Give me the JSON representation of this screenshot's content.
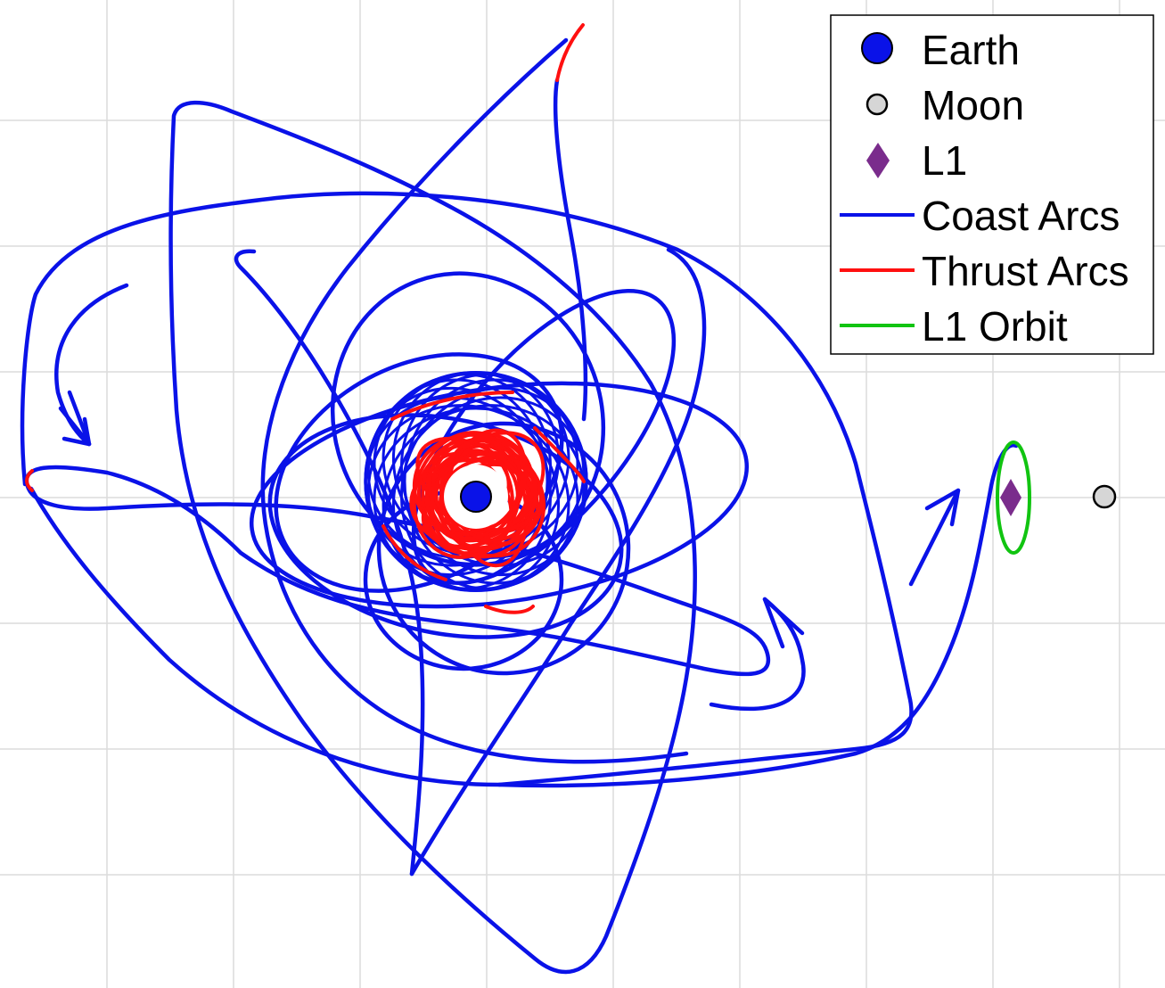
{
  "colors": {
    "coast": "#0a12e8",
    "thrust": "#ff1010",
    "l1_orbit": "#11c411",
    "earth": "#0a12e8",
    "moon": "#d6d6d6",
    "l1": "#7a2c8c",
    "grid": "#dcdcdc"
  },
  "legend": {
    "placement": "top-right",
    "earth": "Earth",
    "moon": "Moon",
    "l1": "L1",
    "coast": "Coast Arcs",
    "thrust": "Thrust Arcs",
    "orbit": "L1 Orbit"
  },
  "bodies": {
    "earth": "Earth",
    "moon": "Moon",
    "l1_point": "L1"
  },
  "grid": true,
  "icons": [
    "earth-marker",
    "moon-marker",
    "l1-diamond-marker",
    "direction-arrow-icon"
  ]
}
